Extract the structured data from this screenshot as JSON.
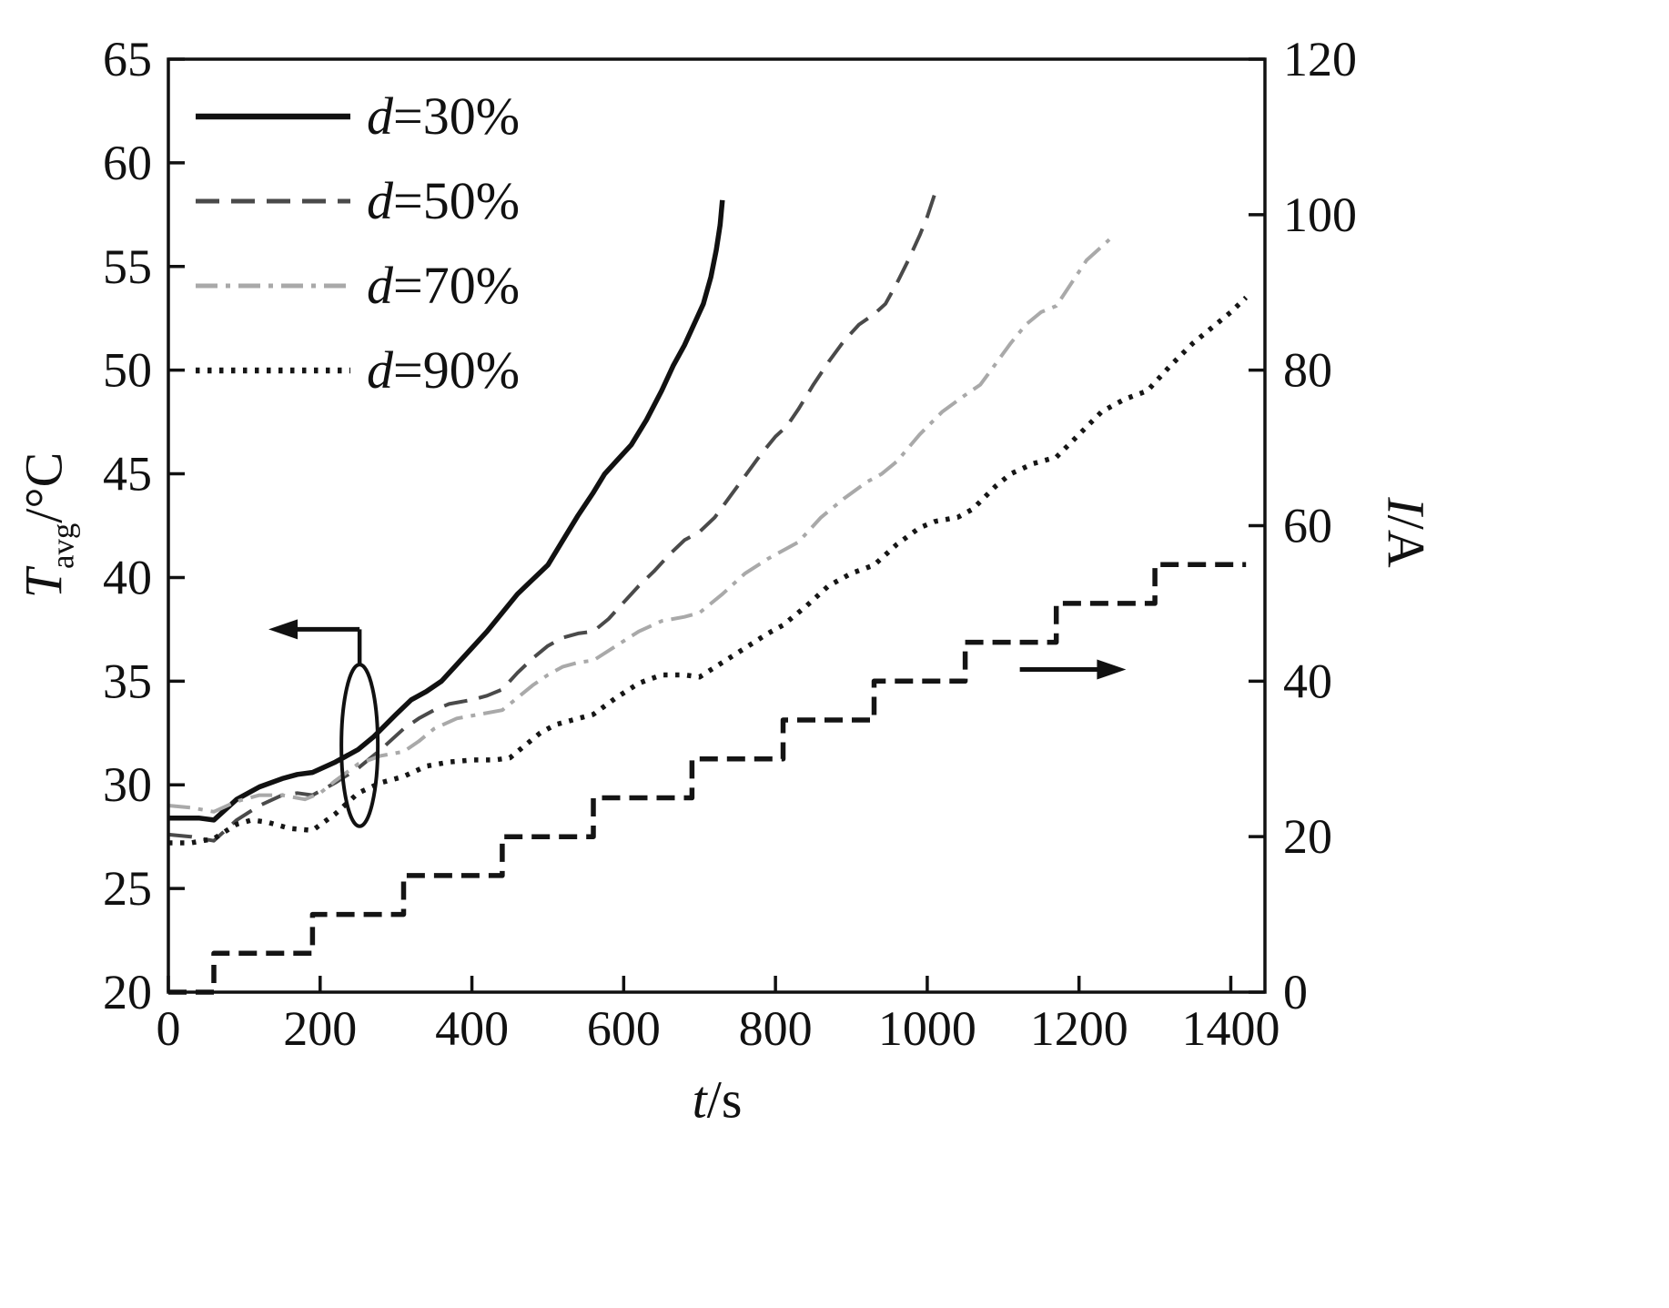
{
  "chart_data": {
    "type": "line",
    "title": "",
    "xlabel": {
      "var": "t",
      "rest": "/s"
    },
    "ylabel_left": {
      "var": "T",
      "sub": "avg",
      "rest": "/°C"
    },
    "ylabel_right": {
      "var": "I",
      "rest": "/A"
    },
    "x_range": [
      0,
      1445
    ],
    "y_left_range": [
      20,
      65
    ],
    "y_right_range": [
      0,
      120
    ],
    "x_ticks": [
      0,
      200,
      400,
      600,
      800,
      1000,
      1200,
      1400
    ],
    "y_left_ticks": [
      20,
      25,
      30,
      35,
      40,
      45,
      50,
      55,
      60,
      65
    ],
    "y_right_ticks": [
      0,
      20,
      40,
      60,
      80,
      100,
      120
    ],
    "grid": false,
    "legend_position": "top-left",
    "colors": {
      "axis": "#111111",
      "background": "#ffffff"
    },
    "series": [
      {
        "id": "d30",
        "label": {
          "var": "d",
          "rest": "=30%"
        },
        "axis": "left",
        "style": "solid",
        "color": "#111111",
        "in_legend": true,
        "points": [
          [
            0,
            28.4
          ],
          [
            40,
            28.4
          ],
          [
            60,
            28.3
          ],
          [
            90,
            29.3
          ],
          [
            120,
            29.9
          ],
          [
            150,
            30.3
          ],
          [
            170,
            30.5
          ],
          [
            190,
            30.6
          ],
          [
            220,
            31.1
          ],
          [
            250,
            31.7
          ],
          [
            270,
            32.3
          ],
          [
            300,
            33.4
          ],
          [
            320,
            34.1
          ],
          [
            340,
            34.5
          ],
          [
            360,
            35.0
          ],
          [
            380,
            35.8
          ],
          [
            400,
            36.6
          ],
          [
            420,
            37.4
          ],
          [
            440,
            38.3
          ],
          [
            460,
            39.2
          ],
          [
            480,
            39.9
          ],
          [
            500,
            40.6
          ],
          [
            520,
            41.8
          ],
          [
            540,
            43.0
          ],
          [
            560,
            44.1
          ],
          [
            575,
            45.0
          ],
          [
            590,
            45.6
          ],
          [
            610,
            46.4
          ],
          [
            630,
            47.6
          ],
          [
            650,
            49.0
          ],
          [
            665,
            50.2
          ],
          [
            680,
            51.2
          ],
          [
            695,
            52.4
          ],
          [
            705,
            53.2
          ],
          [
            715,
            54.5
          ],
          [
            722,
            55.8
          ],
          [
            727,
            57.0
          ],
          [
            730,
            58.2
          ]
        ]
      },
      {
        "id": "d50",
        "label": {
          "var": "d",
          "rest": "=50%"
        },
        "axis": "left",
        "style": "dashed",
        "color": "#4a4a4a",
        "in_legend": true,
        "points": [
          [
            0,
            27.6
          ],
          [
            30,
            27.5
          ],
          [
            60,
            27.3
          ],
          [
            90,
            28.3
          ],
          [
            120,
            29.0
          ],
          [
            150,
            29.5
          ],
          [
            170,
            29.6
          ],
          [
            190,
            29.5
          ],
          [
            220,
            30.1
          ],
          [
            250,
            30.8
          ],
          [
            280,
            31.7
          ],
          [
            310,
            32.7
          ],
          [
            330,
            33.2
          ],
          [
            350,
            33.6
          ],
          [
            370,
            33.9
          ],
          [
            400,
            34.1
          ],
          [
            420,
            34.3
          ],
          [
            440,
            34.6
          ],
          [
            460,
            35.4
          ],
          [
            480,
            36.1
          ],
          [
            500,
            36.7
          ],
          [
            520,
            37.1
          ],
          [
            540,
            37.3
          ],
          [
            560,
            37.4
          ],
          [
            580,
            38.0
          ],
          [
            600,
            38.8
          ],
          [
            620,
            39.6
          ],
          [
            640,
            40.3
          ],
          [
            660,
            41.1
          ],
          [
            680,
            41.8
          ],
          [
            700,
            42.2
          ],
          [
            720,
            42.9
          ],
          [
            740,
            43.9
          ],
          [
            760,
            44.9
          ],
          [
            780,
            45.9
          ],
          [
            800,
            46.8
          ],
          [
            815,
            47.3
          ],
          [
            830,
            48.1
          ],
          [
            850,
            49.3
          ],
          [
            870,
            50.4
          ],
          [
            890,
            51.4
          ],
          [
            910,
            52.2
          ],
          [
            930,
            52.7
          ],
          [
            945,
            53.2
          ],
          [
            960,
            54.2
          ],
          [
            975,
            55.3
          ],
          [
            990,
            56.5
          ],
          [
            1000,
            57.4
          ],
          [
            1010,
            58.5
          ]
        ]
      },
      {
        "id": "d70",
        "label": {
          "var": "d",
          "rest": "=70%"
        },
        "axis": "left",
        "style": "dashdot",
        "color": "#a9a9a9",
        "in_legend": true,
        "points": [
          [
            0,
            29.0
          ],
          [
            30,
            28.9
          ],
          [
            60,
            28.7
          ],
          [
            90,
            29.2
          ],
          [
            120,
            29.5
          ],
          [
            150,
            29.5
          ],
          [
            180,
            29.3
          ],
          [
            200,
            29.6
          ],
          [
            220,
            30.2
          ],
          [
            250,
            31.0
          ],
          [
            280,
            31.4
          ],
          [
            310,
            31.6
          ],
          [
            330,
            32.1
          ],
          [
            350,
            32.7
          ],
          [
            380,
            33.2
          ],
          [
            410,
            33.4
          ],
          [
            440,
            33.6
          ],
          [
            460,
            34.2
          ],
          [
            480,
            34.8
          ],
          [
            500,
            35.3
          ],
          [
            520,
            35.7
          ],
          [
            540,
            35.9
          ],
          [
            560,
            36.0
          ],
          [
            590,
            36.7
          ],
          [
            620,
            37.4
          ],
          [
            650,
            37.9
          ],
          [
            680,
            38.1
          ],
          [
            700,
            38.3
          ],
          [
            730,
            39.2
          ],
          [
            760,
            40.2
          ],
          [
            790,
            40.9
          ],
          [
            810,
            41.3
          ],
          [
            830,
            41.7
          ],
          [
            860,
            42.9
          ],
          [
            890,
            43.8
          ],
          [
            920,
            44.6
          ],
          [
            940,
            45.0
          ],
          [
            960,
            45.6
          ],
          [
            990,
            46.9
          ],
          [
            1020,
            48.0
          ],
          [
            1050,
            48.8
          ],
          [
            1070,
            49.3
          ],
          [
            1090,
            50.3
          ],
          [
            1110,
            51.3
          ],
          [
            1130,
            52.2
          ],
          [
            1150,
            52.8
          ],
          [
            1170,
            53.1
          ],
          [
            1190,
            54.2
          ],
          [
            1210,
            55.3
          ],
          [
            1225,
            55.8
          ],
          [
            1240,
            56.3
          ]
        ]
      },
      {
        "id": "d90",
        "label": {
          "var": "d",
          "rest": "=90%"
        },
        "axis": "left",
        "style": "dotted",
        "color": "#161616",
        "in_legend": true,
        "points": [
          [
            0,
            27.2
          ],
          [
            30,
            27.2
          ],
          [
            60,
            27.4
          ],
          [
            90,
            28.1
          ],
          [
            110,
            28.3
          ],
          [
            130,
            28.2
          ],
          [
            160,
            27.9
          ],
          [
            190,
            27.8
          ],
          [
            220,
            28.6
          ],
          [
            250,
            29.6
          ],
          [
            280,
            30.1
          ],
          [
            310,
            30.4
          ],
          [
            340,
            30.9
          ],
          [
            370,
            31.1
          ],
          [
            400,
            31.2
          ],
          [
            430,
            31.2
          ],
          [
            450,
            31.3
          ],
          [
            470,
            31.9
          ],
          [
            490,
            32.5
          ],
          [
            510,
            32.9
          ],
          [
            530,
            33.1
          ],
          [
            560,
            33.4
          ],
          [
            590,
            34.2
          ],
          [
            620,
            34.9
          ],
          [
            650,
            35.3
          ],
          [
            680,
            35.3
          ],
          [
            700,
            35.2
          ],
          [
            730,
            35.9
          ],
          [
            760,
            36.6
          ],
          [
            790,
            37.3
          ],
          [
            810,
            37.7
          ],
          [
            840,
            38.6
          ],
          [
            870,
            39.6
          ],
          [
            900,
            40.2
          ],
          [
            930,
            40.6
          ],
          [
            960,
            41.6
          ],
          [
            990,
            42.4
          ],
          [
            1010,
            42.7
          ],
          [
            1040,
            42.9
          ],
          [
            1060,
            43.3
          ],
          [
            1090,
            44.4
          ],
          [
            1110,
            45.0
          ],
          [
            1140,
            45.5
          ],
          [
            1170,
            45.8
          ],
          [
            1200,
            46.9
          ],
          [
            1230,
            48.0
          ],
          [
            1260,
            48.6
          ],
          [
            1290,
            49.0
          ],
          [
            1320,
            50.2
          ],
          [
            1350,
            51.3
          ],
          [
            1380,
            52.2
          ],
          [
            1400,
            52.8
          ],
          [
            1420,
            53.5
          ]
        ]
      },
      {
        "id": "current",
        "label": {
          "var": "I",
          "rest": ""
        },
        "axis": "right",
        "style": "step_dashed",
        "color": "#141414",
        "in_legend": false,
        "points": [
          [
            0,
            0
          ],
          [
            60,
            0
          ],
          [
            60,
            5
          ],
          [
            190,
            5
          ],
          [
            190,
            10
          ],
          [
            310,
            10
          ],
          [
            310,
            15
          ],
          [
            440,
            15
          ],
          [
            440,
            20
          ],
          [
            560,
            20
          ],
          [
            560,
            25
          ],
          [
            690,
            25
          ],
          [
            690,
            30
          ],
          [
            810,
            30
          ],
          [
            810,
            35
          ],
          [
            930,
            35
          ],
          [
            930,
            40
          ],
          [
            1050,
            40
          ],
          [
            1050,
            45
          ],
          [
            1170,
            45
          ],
          [
            1170,
            50
          ],
          [
            1300,
            50
          ],
          [
            1300,
            55
          ],
          [
            1420,
            55
          ]
        ]
      }
    ],
    "annotations": {
      "ellipse": {
        "t": 252,
        "T": 31.9,
        "rt": 24,
        "rT": 3.9
      },
      "connector": {
        "t": 252,
        "T_from": 37.5,
        "T_to": 35.8
      },
      "arrow_left": {
        "t_from": 252,
        "t_to": 132,
        "T": 37.5
      },
      "arrow_right": {
        "t_from": 1122,
        "t_to": 1262,
        "I": 41.5
      }
    }
  }
}
